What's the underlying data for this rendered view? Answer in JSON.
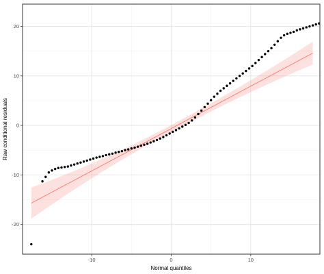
{
  "chart_data": {
    "type": "scatter",
    "title": "",
    "xlabel": "Normal quantiles",
    "ylabel": "Raw conditional residuals",
    "xlim": [
      -18.7,
      18.7
    ],
    "ylim": [
      -26.0,
      24.5
    ],
    "x_ticks": [
      -10,
      0,
      10
    ],
    "y_ticks": [
      -20,
      -10,
      0,
      10,
      20
    ],
    "grid": true,
    "legend": "none",
    "series": [
      {
        "kind": "qq-points",
        "color": "#000000",
        "points": [
          [
            -17.6,
            -24.0
          ],
          [
            -16.2,
            -11.3
          ],
          [
            -15.8,
            -10.4
          ],
          [
            -15.4,
            -9.5
          ],
          [
            -15.0,
            -9.1
          ],
          [
            -14.6,
            -8.8
          ],
          [
            -14.2,
            -8.6
          ],
          [
            -13.8,
            -8.5
          ],
          [
            -13.4,
            -8.4
          ],
          [
            -13.0,
            -8.3
          ],
          [
            -12.6,
            -8.1
          ],
          [
            -12.2,
            -7.9
          ],
          [
            -11.8,
            -7.7
          ],
          [
            -11.4,
            -7.5
          ],
          [
            -11.0,
            -7.3
          ],
          [
            -10.6,
            -7.1
          ],
          [
            -10.2,
            -6.9
          ],
          [
            -9.8,
            -6.7
          ],
          [
            -9.4,
            -6.5
          ],
          [
            -9.0,
            -6.35
          ],
          [
            -8.6,
            -6.2
          ],
          [
            -8.2,
            -6.0
          ],
          [
            -7.8,
            -5.85
          ],
          [
            -7.4,
            -5.7
          ],
          [
            -7.0,
            -5.5
          ],
          [
            -6.6,
            -5.35
          ],
          [
            -6.2,
            -5.2
          ],
          [
            -5.8,
            -5.0
          ],
          [
            -5.4,
            -4.85
          ],
          [
            -5.0,
            -4.65
          ],
          [
            -4.6,
            -4.5
          ],
          [
            -4.2,
            -4.3
          ],
          [
            -3.8,
            -4.1
          ],
          [
            -3.4,
            -3.9
          ],
          [
            -3.0,
            -3.7
          ],
          [
            -2.6,
            -3.45
          ],
          [
            -2.2,
            -3.2
          ],
          [
            -1.8,
            -2.95
          ],
          [
            -1.4,
            -2.65
          ],
          [
            -1.0,
            -2.35
          ],
          [
            -0.6,
            -2.0
          ],
          [
            -0.2,
            -1.65
          ],
          [
            0.2,
            -1.3
          ],
          [
            0.6,
            -0.95
          ],
          [
            1.0,
            -0.6
          ],
          [
            1.4,
            -0.25
          ],
          [
            1.8,
            0.1
          ],
          [
            2.2,
            0.5
          ],
          [
            2.6,
            1.0
          ],
          [
            3.0,
            1.6
          ],
          [
            3.4,
            2.3
          ],
          [
            3.8,
            3.0
          ],
          [
            4.2,
            3.7
          ],
          [
            4.6,
            4.4
          ],
          [
            5.0,
            5.1
          ],
          [
            5.4,
            5.8
          ],
          [
            5.8,
            6.4
          ],
          [
            6.2,
            7.0
          ],
          [
            6.6,
            7.5
          ],
          [
            7.0,
            8.0
          ],
          [
            7.4,
            8.5
          ],
          [
            7.8,
            9.0
          ],
          [
            8.2,
            9.5
          ],
          [
            8.6,
            10.0
          ],
          [
            9.0,
            10.5
          ],
          [
            9.4,
            11.0
          ],
          [
            9.8,
            11.5
          ],
          [
            10.2,
            12.0
          ],
          [
            10.6,
            12.6
          ],
          [
            11.0,
            13.2
          ],
          [
            11.4,
            13.8
          ],
          [
            11.8,
            14.4
          ],
          [
            12.2,
            15.0
          ],
          [
            12.6,
            15.6
          ],
          [
            13.0,
            16.3
          ],
          [
            13.4,
            17.0
          ],
          [
            13.8,
            17.7
          ],
          [
            14.2,
            18.2
          ],
          [
            14.6,
            18.5
          ],
          [
            15.0,
            18.7
          ],
          [
            15.4,
            18.9
          ],
          [
            15.8,
            19.2
          ],
          [
            16.2,
            19.4
          ],
          [
            16.6,
            19.6
          ],
          [
            17.0,
            19.8
          ],
          [
            17.4,
            20.0
          ],
          [
            17.8,
            20.2
          ],
          [
            18.2,
            20.4
          ],
          [
            18.6,
            20.6
          ]
        ]
      },
      {
        "kind": "reference-line",
        "color": "#f8766d",
        "band_color": "#f8766d",
        "x": [
          -17.6,
          17.8
        ],
        "y": [
          -15.7,
          14.6
        ],
        "band_lower": [
          -18.8,
          12.3
        ],
        "band_upper": [
          -12.5,
          16.9
        ]
      }
    ]
  }
}
